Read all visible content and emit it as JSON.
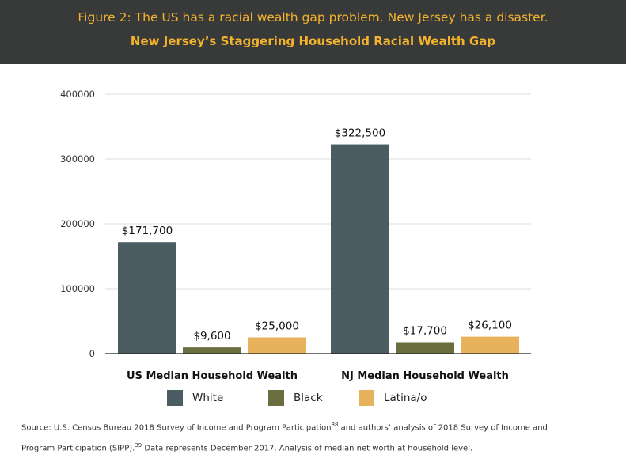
{
  "header": {
    "figure_title": "Figure 2: The US has a racial wealth gap problem.  New Jersey has a disaster.",
    "chart_title": "New Jersey’s Staggering Household Racial Wealth Gap"
  },
  "colors": {
    "header_bg": "#383a3a",
    "title_text": "#f4b32c",
    "White": "#4b5d62",
    "Black": "#6b6f3f",
    "Latina/o": "#e8b25c"
  },
  "chart_data": {
    "type": "bar",
    "title": "New Jersey’s Staggering Household Racial Wealth Gap",
    "categories": [
      "US Median Household Wealth",
      "NJ Median Household Wealth"
    ],
    "series": [
      {
        "name": "White",
        "values": [
          171700,
          322500
        ],
        "labels": [
          "$171,700",
          "$322,500"
        ]
      },
      {
        "name": "Black",
        "values": [
          9600,
          17700
        ],
        "labels": [
          "$9,600",
          "$17,700"
        ]
      },
      {
        "name": "Latina/o",
        "values": [
          25000,
          26100
        ],
        "labels": [
          "$25,000",
          "$26,100"
        ]
      }
    ],
    "xlabel": "",
    "ylabel": "",
    "ylim": [
      0,
      400000
    ],
    "yticks": [
      0,
      100000,
      200000,
      300000,
      400000
    ],
    "ytick_labels": [
      "0",
      "100000",
      "200000",
      "300000",
      "400000"
    ],
    "grid": true,
    "legend_position": "bottom"
  },
  "legend": {
    "items": [
      "White",
      "Black",
      "Latina/o"
    ]
  },
  "source": {
    "line1_a": "Source: U.S. Census Bureau 2018 Survey of Income and Program Participation",
    "sup1": "38",
    "line1_b": " and authors’ analysis of 2018 Survey of Income and",
    "line2_a": "Program Participation (SIPP).",
    "sup2": "39",
    "line2_b": " Data represents December 2017. Analysis of median net worth at household level."
  }
}
